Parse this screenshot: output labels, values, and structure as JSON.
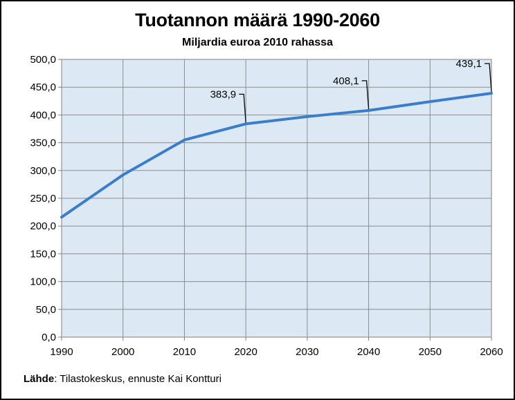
{
  "chart_data": {
    "type": "line",
    "title": "Tuotannon määrä 1990-2060",
    "subtitle": "Miljardia euroa 2010 rahassa",
    "xlabel": "",
    "ylabel": "",
    "xlim": [
      1990,
      2060
    ],
    "ylim": [
      0,
      500
    ],
    "x_ticks": [
      "1990",
      "2000",
      "2010",
      "2020",
      "2030",
      "2040",
      "2050",
      "2060"
    ],
    "y_ticks": [
      "0,0",
      "50,0",
      "100,0",
      "150,0",
      "200,0",
      "250,0",
      "300,0",
      "350,0",
      "400,0",
      "450,0",
      "500,0"
    ],
    "grid": true,
    "legend": "none",
    "series": [
      {
        "color": "#3a7dc9",
        "x": [
          1990,
          2000,
          2010,
          2020,
          2030,
          2040,
          2050,
          2060
        ],
        "values": [
          216,
          292,
          355,
          383.9,
          397,
          408.1,
          424,
          439.1
        ]
      }
    ],
    "annotations": [
      {
        "x": 2020,
        "y": 383.9,
        "text": "383,9"
      },
      {
        "x": 2040,
        "y": 408.1,
        "text": "408,1"
      },
      {
        "x": 2060,
        "y": 439.1,
        "text": "439,1"
      }
    ],
    "plot_background": "#dce9f5"
  },
  "source": {
    "label": "Lähde",
    "text": ": Tilastokeskus, ennuste Kai Kontturi"
  }
}
